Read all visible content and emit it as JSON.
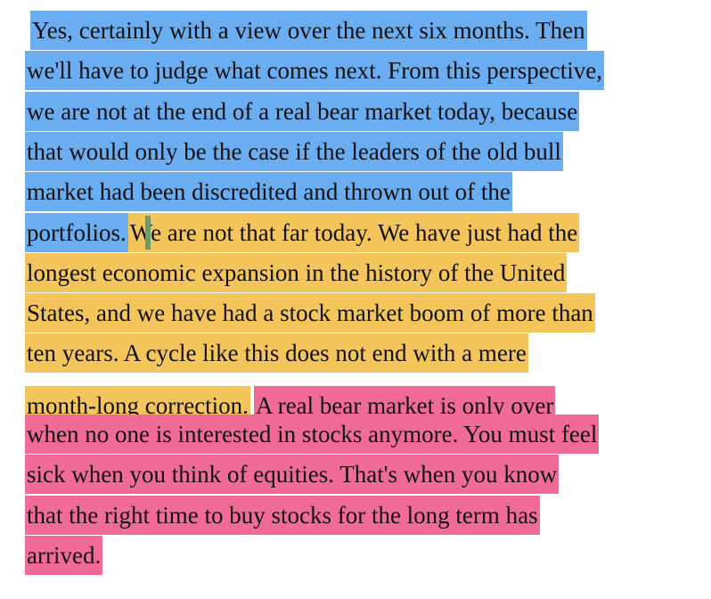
{
  "highlights": {
    "blue": "#6aadf0",
    "yellow": "#f4c55a",
    "pink": "#f06b96"
  },
  "lines": [
    {
      "segments": [
        {
          "color": "blue",
          "text": "Yes, certainly with a view over the next six months. Then"
        }
      ]
    },
    {
      "segments": [
        {
          "color": "blue",
          "text": "we'll have to judge what comes next. From this perspective,"
        }
      ]
    },
    {
      "segments": [
        {
          "color": "blue",
          "text": "we are not at the end of a real bear market today, because"
        }
      ]
    },
    {
      "segments": [
        {
          "color": "blue",
          "text": "that would only be the case if the leaders of the old bull"
        }
      ]
    },
    {
      "segments": [
        {
          "color": "blue",
          "text": "market had been discredited and thrown out of the"
        }
      ]
    },
    {
      "segments": [
        {
          "color": "blue",
          "text": "portfolios."
        },
        {
          "color": "yellow",
          "text": "We are not that far today. We have just had the"
        }
      ]
    },
    {
      "segments": [
        {
          "color": "yellow",
          "text": "longest economic expansion in the history of the United"
        }
      ]
    },
    {
      "segments": [
        {
          "color": "yellow",
          "text": "States, and we have had a stock market boom of more than"
        }
      ]
    },
    {
      "segments": [
        {
          "color": "yellow",
          "text": "ten years. A cycle like this does not end with a mere"
        }
      ]
    },
    {
      "segments": [
        {
          "color": "yellow",
          "text": "month-long correction."
        },
        {
          "color": "white",
          "text": " "
        },
        {
          "color": "pink",
          "text": "A real bear market is only over"
        }
      ]
    },
    {
      "segments": [
        {
          "color": "pink",
          "text": "when no one is interested in stocks anymore. You must feel"
        }
      ]
    },
    {
      "segments": [
        {
          "color": "pink",
          "text": "sick when you think of equities. That's when you know"
        }
      ]
    },
    {
      "segments": [
        {
          "color": "pink",
          "text": "that the right time to buy stocks for the long term has"
        }
      ]
    },
    {
      "segments": [
        {
          "color": "pink",
          "text": "arrived."
        }
      ]
    }
  ]
}
